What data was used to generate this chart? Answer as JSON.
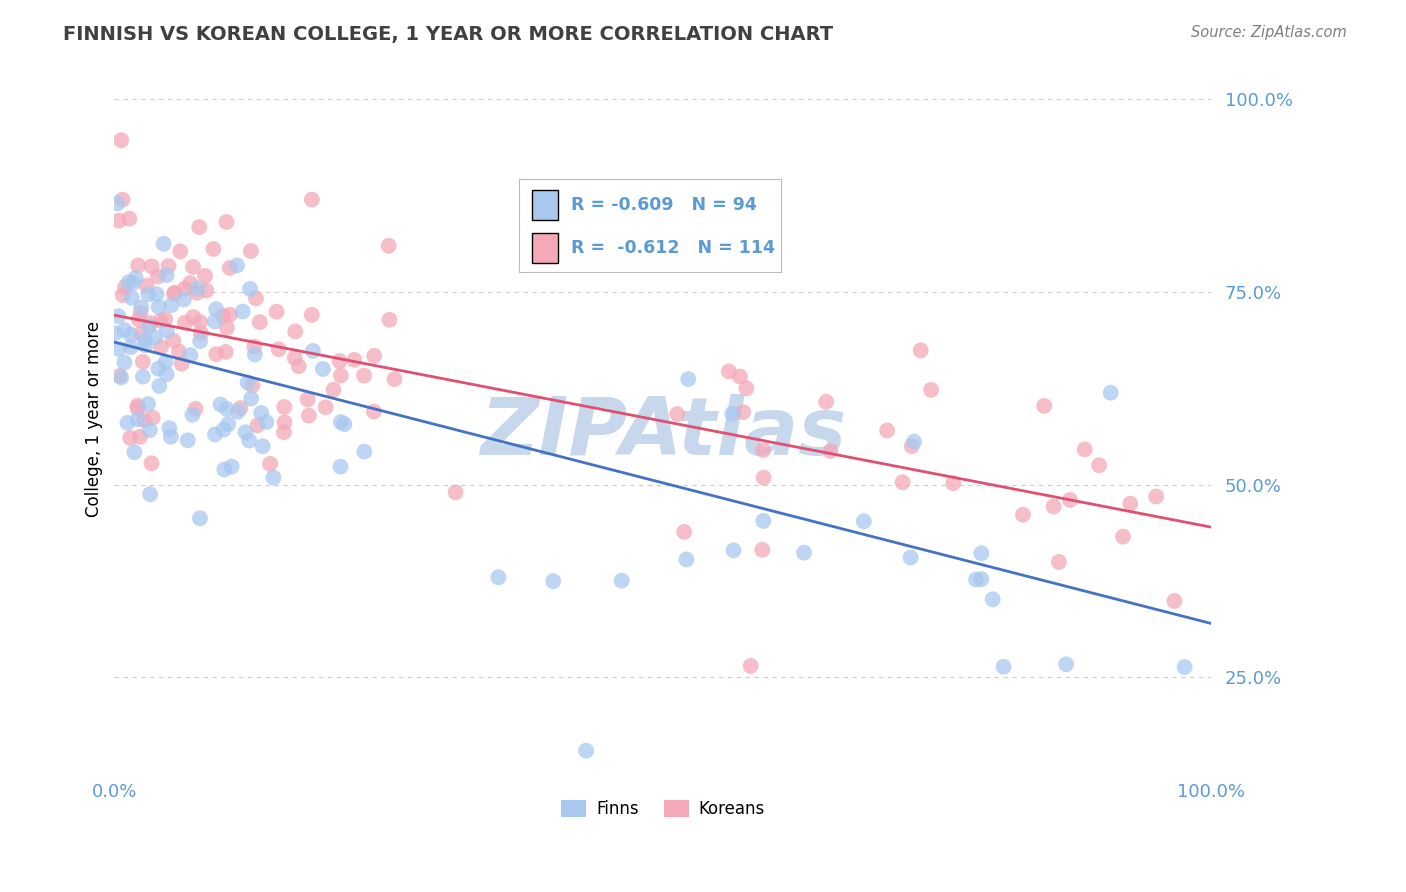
{
  "title": "FINNISH VS KOREAN COLLEGE, 1 YEAR OR MORE CORRELATION CHART",
  "source": "Source: ZipAtlas.com",
  "ylabel": "College, 1 year or more",
  "ytick_labels": [
    "25.0%",
    "50.0%",
    "75.0%",
    "100.0%"
  ],
  "ytick_values": [
    0.25,
    0.5,
    0.75,
    1.0
  ],
  "xlim": [
    0.0,
    1.0
  ],
  "ylim": [
    0.13,
    1.04
  ],
  "legend_blue_R": "-0.609",
  "legend_blue_N": "94",
  "legend_pink_R": "-0.612",
  "legend_pink_N": "114",
  "blue_color": "#A8C8F0",
  "pink_color": "#F4A8B8",
  "blue_line_color": "#4472C4",
  "pink_line_color": "#E05070",
  "tick_color": "#5B9BD5",
  "watermark": "ZIPAtlas",
  "watermark_color": "#C8D8EC",
  "background_color": "#FFFFFF",
  "grid_color": "#CCCCCC",
  "title_color": "#404040",
  "source_color": "#808080"
}
